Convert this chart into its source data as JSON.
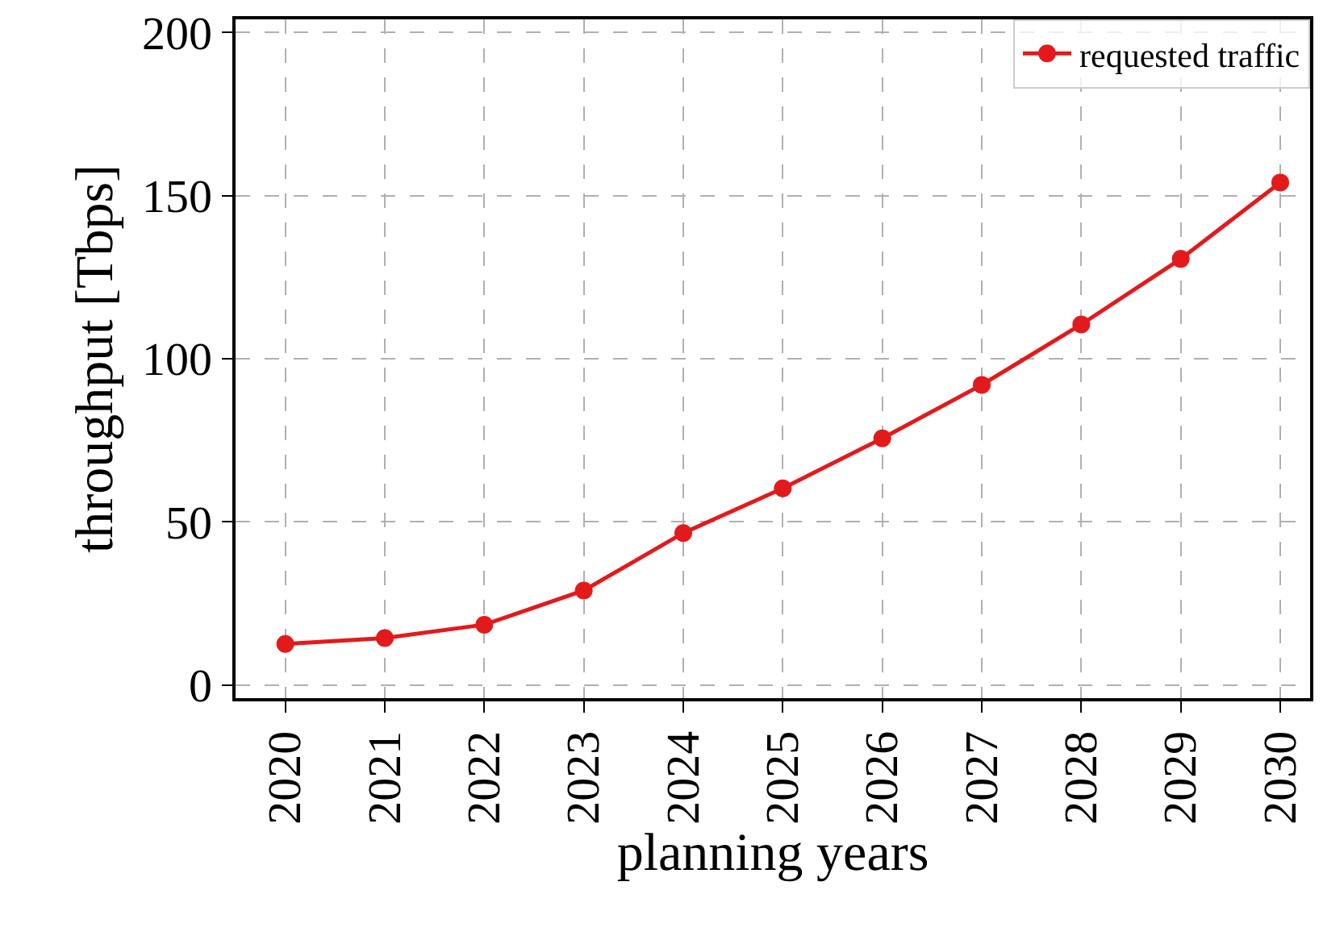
{
  "chart_data": {
    "type": "line",
    "xlabel": "planning years",
    "ylabel": "throughput [Tbps]",
    "x": [
      2020,
      2021,
      2022,
      2023,
      2024,
      2025,
      2026,
      2027,
      2028,
      2029,
      2030
    ],
    "series": [
      {
        "name": "requested traffic",
        "color": "#e31a1c",
        "values": [
          12.6,
          14.4,
          18.5,
          29,
          46.6,
          60.3,
          75.6,
          92,
          110.5,
          130.6,
          154
        ]
      }
    ],
    "xlim": [
      2019.5,
      2030.3
    ],
    "xticks": [
      2020,
      2021,
      2022,
      2023,
      2024,
      2025,
      2026,
      2027,
      2028,
      2029,
      2030
    ],
    "ylim": [
      -4,
      204
    ],
    "yticks": [
      0,
      50,
      100,
      150,
      200
    ],
    "grid": true,
    "legend": "top right",
    "marker": "circle",
    "line_style": "solid"
  }
}
